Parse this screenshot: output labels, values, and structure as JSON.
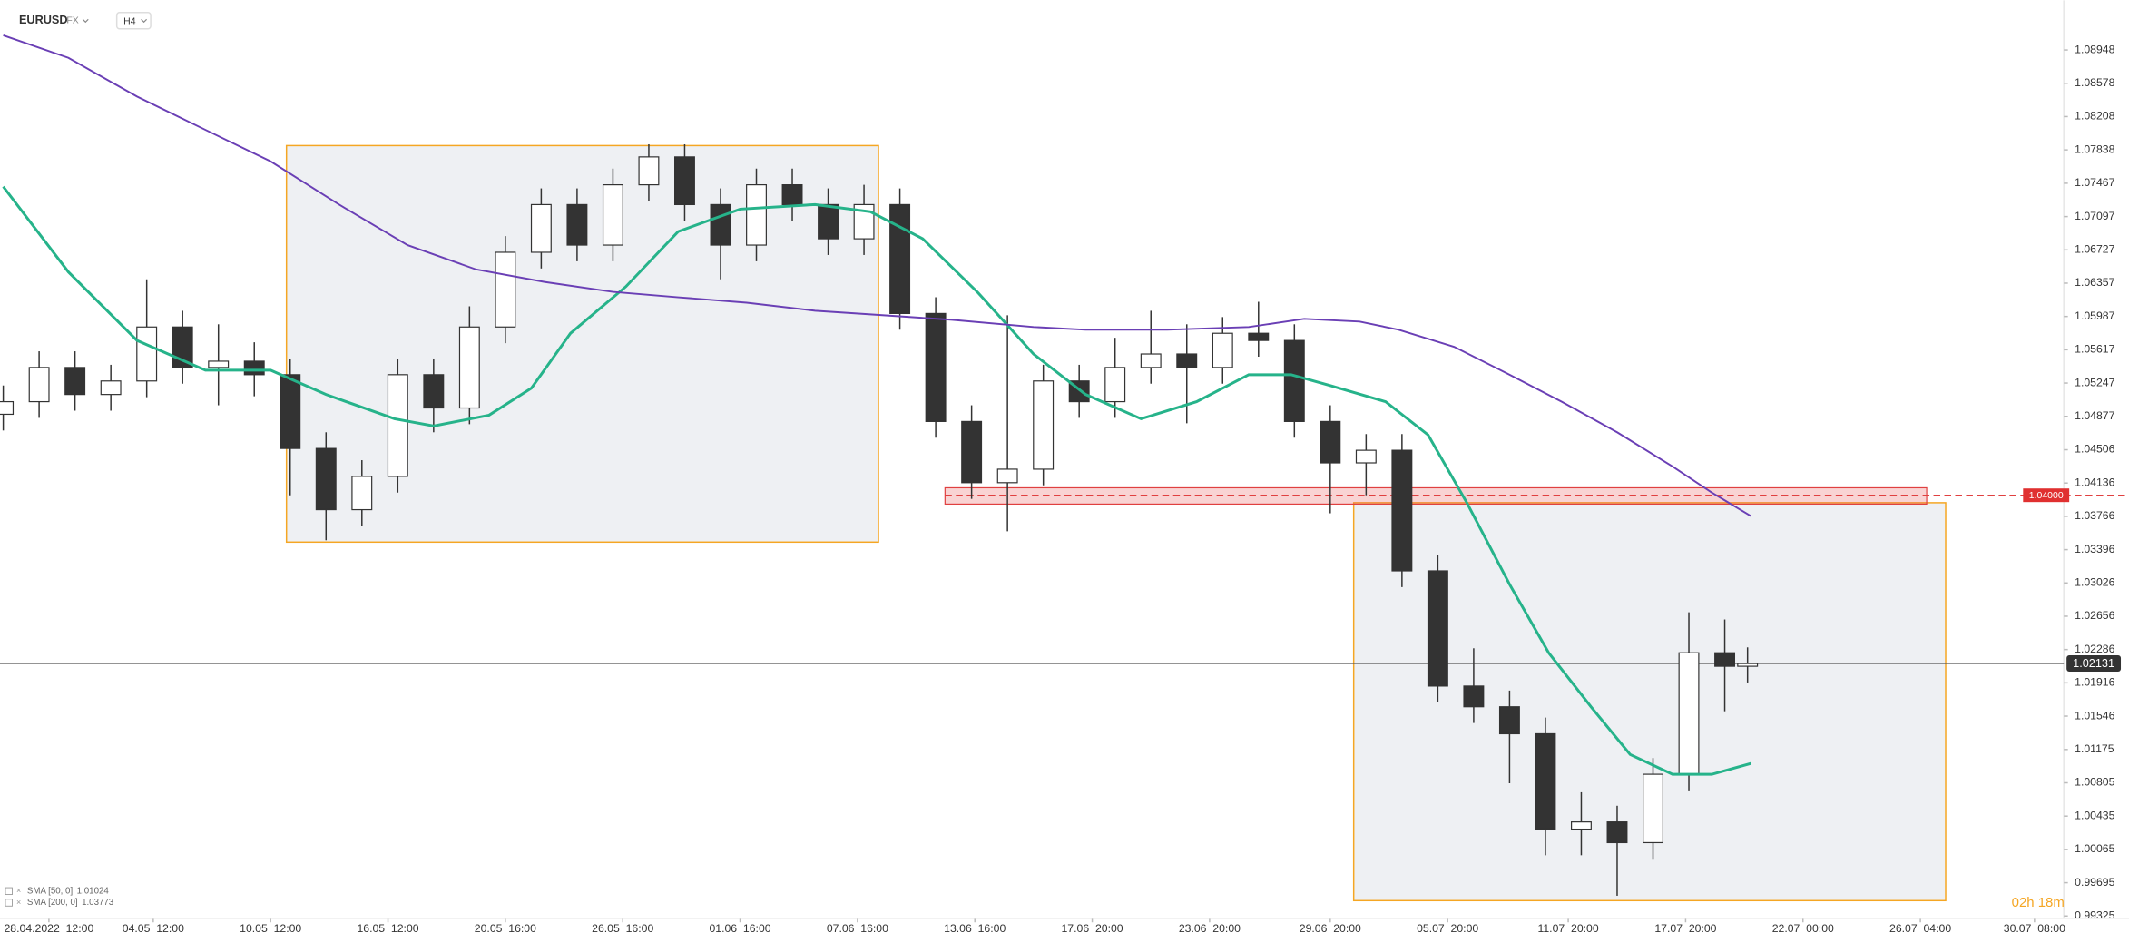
{
  "chart_data": {
    "type": "candlestick",
    "symbol": "EURUSD",
    "market": "FX",
    "interval": "H4",
    "countdown": "02h 18m",
    "x": [
      -14,
      -3,
      8,
      19,
      30,
      41,
      52,
      63,
      74,
      85,
      96,
      107,
      118,
      129,
      140,
      151,
      162,
      173,
      184,
      195,
      206,
      217,
      228,
      239,
      250,
      261,
      272,
      283,
      294,
      305,
      316,
      327,
      338,
      349,
      360,
      371,
      382,
      393,
      404,
      415,
      426,
      437,
      448,
      459,
      470,
      481,
      492,
      503,
      514,
      521
    ],
    "open": [
      1.049,
      1.0504,
      1.0542,
      1.0512,
      1.0527,
      1.0587,
      1.0542,
      1.0549,
      1.0534,
      1.0452,
      1.0384,
      1.0421,
      1.0534,
      1.0497,
      1.0587,
      1.067,
      1.0723,
      1.0678,
      1.0745,
      1.0776,
      1.0723,
      1.0678,
      1.0745,
      1.0723,
      1.0685,
      1.0723,
      1.0602,
      1.0482,
      1.0414,
      1.0429,
      1.0527,
      1.0504,
      1.0542,
      1.0557,
      1.0542,
      1.058,
      1.0572,
      1.0482,
      1.0436,
      1.045,
      1.0316,
      1.0188,
      1.0165,
      1.0135,
      1.0029,
      1.0037,
      1.0014,
      1.009,
      1.0225,
      1.021
    ],
    "high": [
      1.0522,
      1.056,
      1.056,
      1.0545,
      1.064,
      1.0605,
      1.059,
      1.057,
      1.0552,
      1.047,
      1.0439,
      1.0552,
      1.0552,
      1.061,
      1.0688,
      1.0741,
      1.0741,
      1.0763,
      1.079,
      1.079,
      1.0741,
      1.0763,
      1.0763,
      1.0741,
      1.0745,
      1.0741,
      1.062,
      1.05,
      1.06,
      1.0545,
      1.0545,
      1.0575,
      1.0605,
      1.059,
      1.0598,
      1.0615,
      1.059,
      1.05,
      1.0468,
      1.0468,
      1.0334,
      1.023,
      1.0183,
      1.0153,
      1.007,
      1.0055,
      1.0108,
      1.027,
      1.0262,
      1.0231
    ],
    "low": [
      1.0472,
      1.0486,
      1.0494,
      1.0494,
      1.0509,
      1.0524,
      1.05,
      1.051,
      1.04,
      1.035,
      1.0366,
      1.0403,
      1.047,
      1.0479,
      1.0569,
      1.0652,
      1.066,
      1.066,
      1.0727,
      1.0705,
      1.064,
      1.066,
      1.0705,
      1.0667,
      1.0667,
      1.0584,
      1.0464,
      1.0396,
      1.036,
      1.0411,
      1.0486,
      1.0486,
      1.0524,
      1.048,
      1.0524,
      1.0554,
      1.0464,
      1.038,
      1.04,
      1.0298,
      1.017,
      1.0147,
      1.008,
      1.0,
      1.0,
      0.9955,
      0.9996,
      1.0072,
      1.016,
      1.0192
    ],
    "close": [
      1.0504,
      1.0542,
      1.0512,
      1.0527,
      1.0587,
      1.0542,
      1.0549,
      1.0534,
      1.0452,
      1.0384,
      1.0421,
      1.0534,
      1.0497,
      1.0587,
      1.067,
      1.0723,
      1.0678,
      1.0745,
      1.0776,
      1.0723,
      1.0678,
      1.0745,
      1.0723,
      1.0685,
      1.0723,
      1.0602,
      1.0482,
      1.0414,
      1.0429,
      1.0527,
      1.0504,
      1.0542,
      1.0557,
      1.0542,
      1.058,
      1.0572,
      1.0482,
      1.0436,
      1.045,
      1.0316,
      1.0188,
      1.0165,
      1.0135,
      1.0029,
      1.0037,
      1.0014,
      1.009,
      1.0225,
      1.021,
      1.0213
    ],
    "up_color": "#ffffff",
    "down_color": "#333333",
    "series": [
      {
        "name": "SMA [50, 0]",
        "last": 1.01024,
        "color": "#26b38a",
        "x": [
          -14,
          6,
          27,
          48,
          68,
          85,
          106,
          118,
          135,
          148,
          160,
          177,
          193,
          212,
          235,
          252,
          268,
          285,
          302,
          318,
          335,
          352,
          368,
          381,
          393,
          410,
          423,
          435,
          448,
          460,
          473,
          485,
          498,
          510,
          522
        ],
        "values": [
          1.0743,
          1.0648,
          1.0572,
          1.0539,
          1.0539,
          1.0512,
          1.0485,
          1.0477,
          1.0489,
          1.0519,
          1.058,
          1.0632,
          1.0693,
          1.0718,
          1.0723,
          1.0715,
          1.0685,
          1.0625,
          1.0557,
          1.0512,
          1.0485,
          1.0504,
          1.0534,
          1.0534,
          1.0522,
          1.0504,
          1.0467,
          1.0391,
          1.0301,
          1.0225,
          1.0165,
          1.0112,
          1.009,
          1.009,
          1.0102
        ]
      },
      {
        "name": "SMA [200, 0]",
        "last": 1.03773,
        "color": "#6a3fb5",
        "x": [
          -14,
          6,
          27,
          48,
          68,
          89,
          110,
          131,
          152,
          173,
          193,
          214,
          235,
          252,
          277,
          302,
          318,
          343,
          368,
          385,
          402,
          414,
          431,
          448,
          464,
          481,
          498,
          510,
          522
        ],
        "values": [
          1.0911,
          1.0886,
          1.0843,
          1.0806,
          1.0771,
          1.0723,
          1.0678,
          1.0651,
          1.0637,
          1.0626,
          1.062,
          1.0614,
          1.0605,
          1.0601,
          1.0595,
          1.0587,
          1.0584,
          1.0584,
          1.0587,
          1.0596,
          1.0593,
          1.0584,
          1.0565,
          1.0534,
          1.0504,
          1.047,
          1.0432,
          1.0403,
          1.0377
        ]
      }
    ],
    "price_line": 1.02131,
    "level_line": {
      "value": 1.04,
      "label": "1.04000"
    },
    "xlim": [
      -15,
      618
    ],
    "ylim": [
      0.993,
      1.095
    ],
    "yticks": [
      1.08948,
      1.08578,
      1.08208,
      1.07838,
      1.07467,
      1.07097,
      1.06727,
      1.06357,
      1.05987,
      1.05617,
      1.05247,
      1.04877,
      1.04506,
      1.04136,
      1.03766,
      1.03396,
      1.03026,
      1.02656,
      1.02286,
      1.01916,
      1.01546,
      1.01175,
      1.00805,
      1.00435,
      1.00065,
      0.99695,
      0.99325
    ],
    "xticks": [
      {
        "value": 0,
        "label": "28.04.2022  12:00"
      },
      {
        "value": 32,
        "label": "04.05  12:00"
      },
      {
        "value": 68,
        "label": "10.05  12:00"
      },
      {
        "value": 104,
        "label": "16.05  12:00"
      },
      {
        "value": 140,
        "label": "20.05  16:00"
      },
      {
        "value": 176,
        "label": "26.05  16:00"
      },
      {
        "value": 212,
        "label": "01.06  16:00"
      },
      {
        "value": 248,
        "label": "07.06  16:00"
      },
      {
        "value": 284,
        "label": "13.06  16:00"
      },
      {
        "value": 320,
        "label": "17.06  20:00"
      },
      {
        "value": 356,
        "label": "23.06  20:00"
      },
      {
        "value": 393,
        "label": "29.06  20:00"
      },
      {
        "value": 429,
        "label": "05.07  20:00"
      },
      {
        "value": 466,
        "label": "11.07  20:00"
      },
      {
        "value": 502,
        "label": "17.07  20:00"
      },
      {
        "value": 538,
        "label": "22.07  00:00"
      },
      {
        "value": 574,
        "label": "26.07  04:00"
      },
      {
        "value": 609,
        "label": "30.07  08:00"
      }
    ],
    "grid": false
  }
}
